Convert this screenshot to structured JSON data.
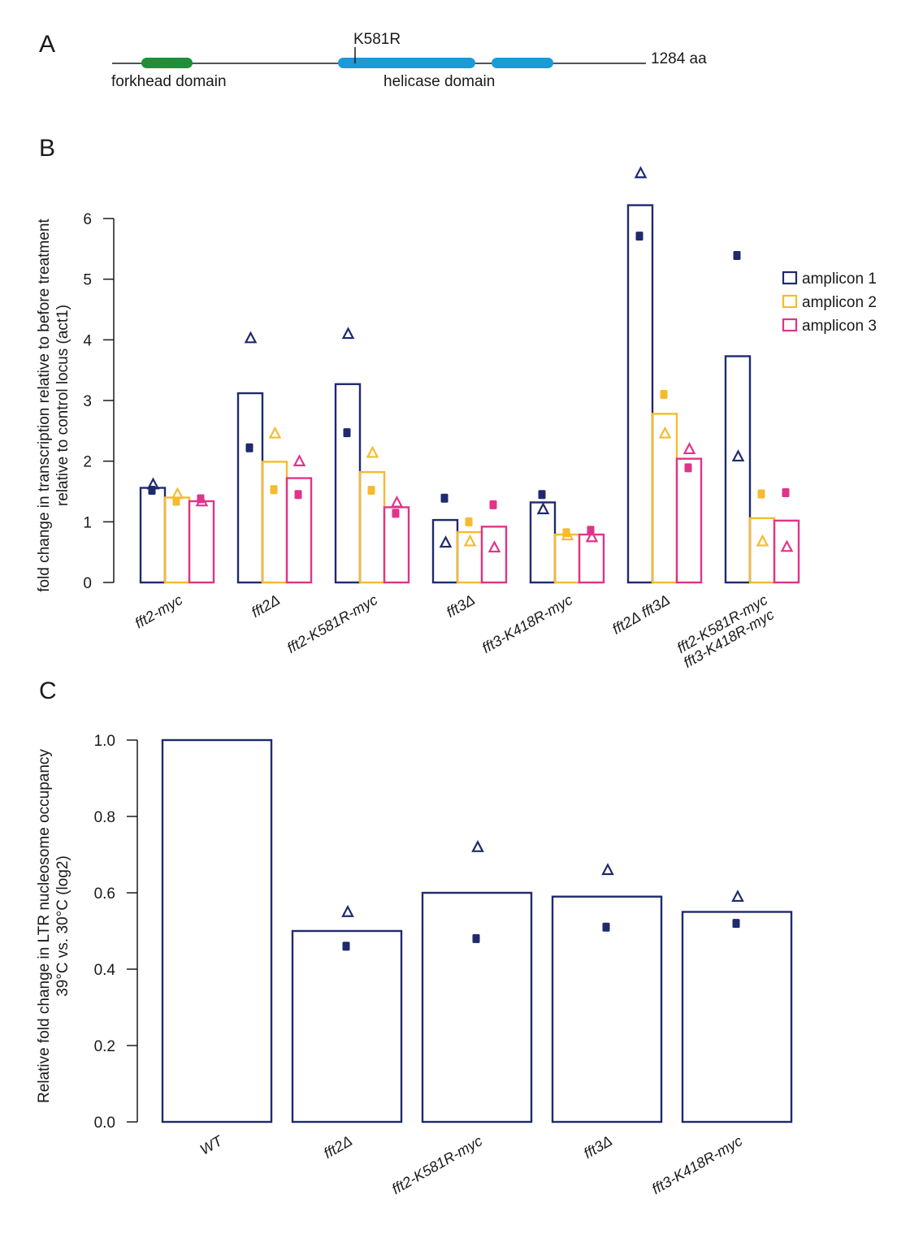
{
  "panel_a": {
    "letter": "A",
    "mutation_label": "K581R",
    "length_label": "1284 aa",
    "domains": [
      {
        "name": "forkhead domain",
        "color": "#1f8f3a"
      },
      {
        "name": "helicase domain",
        "color": "#1a9ad9"
      }
    ],
    "forkhead_label": "forkhead domain",
    "helicase_label": "helicase domain"
  },
  "chart_data": [
    {
      "panel": "B",
      "type": "bar",
      "title": "",
      "xlabel": "",
      "ylabel": [
        "fold change in transcription relative to before treatment",
        "relative to control locus (act1)"
      ],
      "ylim": [
        0,
        6
      ],
      "yticks": [
        "0",
        "1",
        "2",
        "3",
        "4",
        "5",
        "6"
      ],
      "categories": [
        [
          "fft2-myc"
        ],
        [
          "fft2Δ"
        ],
        [
          "fft2-K581R-myc"
        ],
        [
          "fft3Δ"
        ],
        [
          "fft3-K418R-myc"
        ],
        [
          "fft2Δ fft3Δ"
        ],
        [
          "fft2-K581R-myc",
          "fft3-K418R-myc"
        ]
      ],
      "legend_position": "top-right",
      "series": [
        {
          "name": "amplicon 1",
          "color": "#1f2a6e",
          "values": [
            1.56,
            3.12,
            3.27,
            1.03,
            1.32,
            6.22,
            3.73
          ],
          "replicate_square": [
            1.52,
            2.22,
            2.47,
            1.39,
            1.45,
            5.71,
            5.39
          ],
          "replicate_triangle": [
            1.62,
            4.03,
            4.1,
            0.66,
            1.21,
            6.75,
            2.08
          ]
        },
        {
          "name": "amplicon 2",
          "color": "#f5bb2f",
          "values": [
            1.4,
            1.99,
            1.82,
            0.83,
            0.79,
            2.78,
            1.06
          ],
          "replicate_square": [
            1.34,
            1.53,
            1.52,
            1.0,
            0.82,
            3.1,
            1.46
          ],
          "replicate_triangle": [
            1.46,
            2.46,
            2.14,
            0.68,
            0.78,
            2.46,
            0.68
          ]
        },
        {
          "name": "amplicon 3",
          "color": "#e0348a",
          "values": [
            1.34,
            1.72,
            1.24,
            0.92,
            0.79,
            2.04,
            1.02
          ],
          "replicate_square": [
            1.38,
            1.45,
            1.14,
            1.28,
            0.86,
            1.89,
            1.48
          ],
          "replicate_triangle": [
            1.34,
            2.0,
            1.32,
            0.58,
            0.75,
            2.2,
            0.59
          ]
        }
      ],
      "letter": "B"
    },
    {
      "panel": "C",
      "type": "bar",
      "title": "",
      "xlabel": "",
      "ylabel": [
        "Relative fold change in LTR nucleosome occupancy",
        "39°C  vs. 30°C (log2)"
      ],
      "ylim": [
        0,
        1.0
      ],
      "yticks": [
        "0.0",
        "0.2",
        "0.4",
        "0.6",
        "0.8",
        "1.0"
      ],
      "categories": [
        "WT",
        "fft2Δ",
        "fft2-K581R-myc",
        "fft3Δ",
        "fft3-K418R-myc"
      ],
      "series": [
        {
          "name": "occupancy",
          "color": "#1f2a6e",
          "values": [
            1.0,
            0.5,
            0.6,
            0.59,
            0.55
          ],
          "replicate_square": [
            null,
            0.46,
            0.48,
            0.51,
            0.52
          ],
          "replicate_triangle": [
            null,
            0.55,
            0.72,
            0.66,
            0.59
          ]
        }
      ],
      "letter": "C"
    }
  ]
}
